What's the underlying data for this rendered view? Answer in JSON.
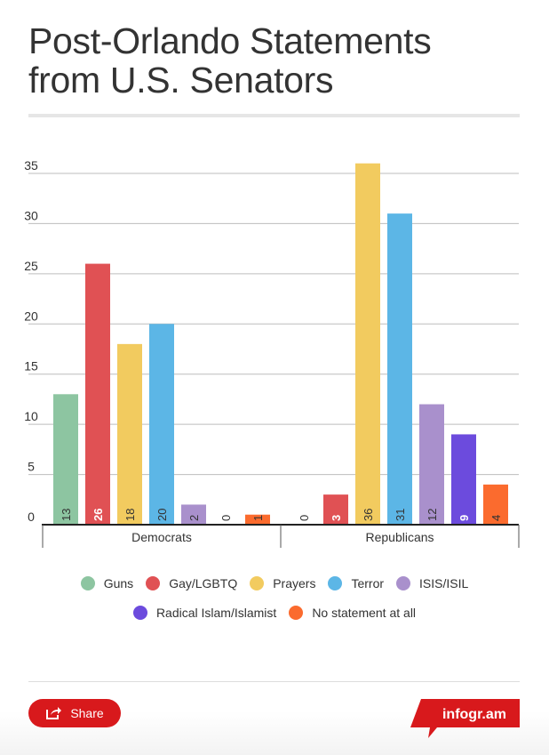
{
  "title_line1": "Post-Orlando Statements",
  "title_line2": "from U.S. Senators",
  "share_label": "Share",
  "logo_text": "infogr.am",
  "colors": {
    "brand": "#d8191c"
  },
  "chart_data": {
    "type": "bar",
    "title": "Post-Orlando Statements from U.S. Senators",
    "categories": [
      "Democrats",
      "Republicans"
    ],
    "series": [
      {
        "name": "Guns",
        "color": "#8dc5a1",
        "values": [
          13,
          0
        ]
      },
      {
        "name": "Gay/LGBTQ",
        "color": "#e05154",
        "values": [
          26,
          3
        ]
      },
      {
        "name": "Prayers",
        "color": "#f2cb5f",
        "values": [
          18,
          36
        ]
      },
      {
        "name": "Terror",
        "color": "#5cb6e6",
        "values": [
          20,
          31
        ]
      },
      {
        "name": "ISIS/ISIL",
        "color": "#a990cc",
        "values": [
          2,
          12
        ]
      },
      {
        "name": "Radical Islam/Islamist",
        "color": "#6c4bdd",
        "values": [
          0,
          9
        ]
      },
      {
        "name": "No statement at all",
        "color": "#fb6b2e",
        "values": [
          1,
          4
        ]
      }
    ],
    "yticks": [
      "0",
      "5",
      "10",
      "15",
      "20",
      "25",
      "30",
      "35"
    ],
    "ylim": [
      0,
      35
    ],
    "grid": true,
    "legend_position": "bottom"
  }
}
